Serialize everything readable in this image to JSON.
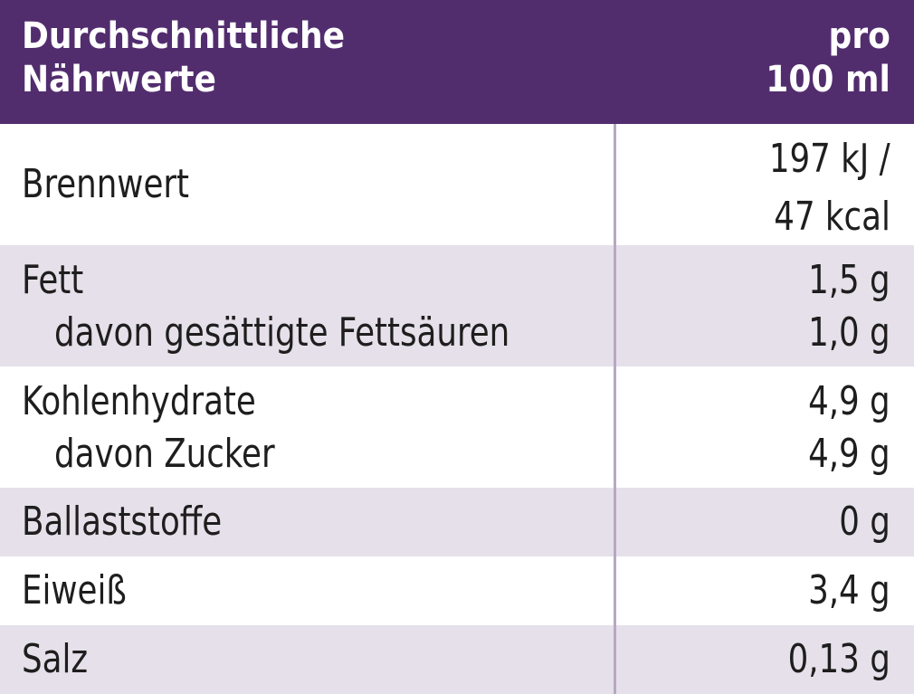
{
  "header": {
    "left_line1": "Durchschnittliche",
    "left_line2": "Nährwerte",
    "right_line1": "pro",
    "right_line2": "100 ml"
  },
  "rows": {
    "brennwert": {
      "label": "Brennwert",
      "value_line1": "197 kJ /",
      "value_line2": "47 kcal"
    },
    "fett": {
      "label": "Fett",
      "value": "1,5 g",
      "sub_label": "davon gesättigte Fettsäuren",
      "sub_value": "1,0 g"
    },
    "kohlenhydrate": {
      "label": "Kohlenhydrate",
      "value": "4,9 g",
      "sub_label": "davon Zucker",
      "sub_value": "4,9 g"
    },
    "ballaststoffe": {
      "label": "Ballaststoffe",
      "value": "0 g"
    },
    "eiweiss": {
      "label": "Eiweiß",
      "value": "3,4 g"
    },
    "salz": {
      "label": "Salz",
      "value": "0,13 g"
    }
  },
  "colors": {
    "header_bg": "#522d6e",
    "row_shade": "#e5e0e9",
    "divider": "#b6a8c3"
  }
}
